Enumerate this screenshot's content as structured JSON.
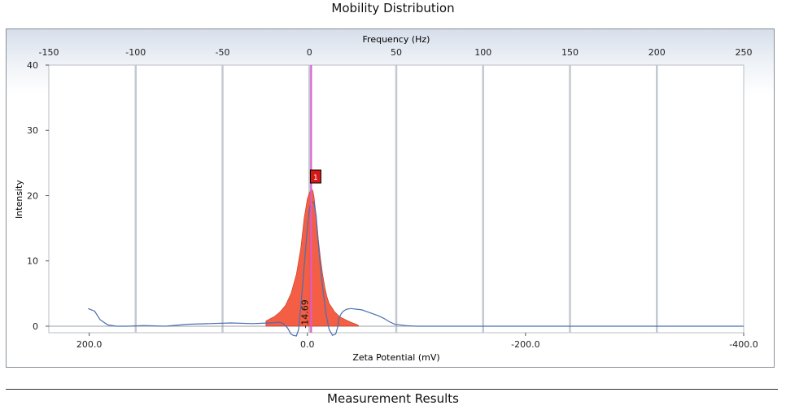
{
  "page": {
    "title": "Mobility Distribution",
    "section_title": "Measurement Results"
  },
  "colors": {
    "curve": "#4a70b0",
    "peak_fill": "#f2553b",
    "marker_line": "#e05ad0",
    "grid": "#c4c8d0",
    "badge": "#d81818"
  },
  "chart_data": {
    "type": "area",
    "top_axis": {
      "label": "Frequency (Hz)",
      "range": [
        -150,
        250
      ],
      "ticks": [
        -150,
        -100,
        -50,
        0,
        50,
        100,
        150,
        200,
        250
      ],
      "tick_labels": [
        "-150",
        "-100",
        "-50",
        "0",
        "50",
        "100",
        "150",
        "200",
        "250"
      ]
    },
    "x_axis": {
      "label": "Zeta Potential (mV)",
      "range": [
        237,
        -400
      ],
      "ticks": [
        200,
        0,
        -200,
        -400
      ],
      "tick_labels": [
        "200.0",
        "0.0",
        "-200.0",
        "-400.0"
      ]
    },
    "y_axis": {
      "label": "Intensity",
      "range": [
        -1,
        40
      ],
      "ticks": [
        0,
        10,
        20,
        30,
        40
      ],
      "tick_labels": [
        "0",
        "10",
        "20",
        "30",
        "40"
      ]
    },
    "grid": "vertical",
    "series": [
      {
        "style": "line",
        "x": [
          201,
          195,
          190,
          183,
          175,
          165,
          150,
          130,
          110,
          90,
          70,
          50,
          35,
          25,
          22,
          18,
          15,
          13,
          10,
          8,
          6,
          4,
          2,
          0,
          -2,
          -4,
          -6,
          -8,
          -10,
          -12,
          -14,
          -17,
          -20,
          -23,
          -26,
          -28,
          -29,
          -31,
          -33,
          -36,
          -40,
          -45,
          -50,
          -55,
          -60,
          -65,
          -70,
          -75,
          -80,
          -90,
          -100,
          -110,
          -130,
          -150,
          -180,
          -220,
          -260,
          -300,
          -340,
          -400
        ],
        "y": [
          2.7,
          2.3,
          1.0,
          0.2,
          0.0,
          0.0,
          0.1,
          0.0,
          0.3,
          0.4,
          0.5,
          0.4,
          0.5,
          0.6,
          0.4,
          -0.3,
          -1.2,
          -1.4,
          -1.5,
          -0.5,
          3.0,
          7.0,
          11.0,
          15.0,
          18.0,
          19.0,
          19.0,
          17.0,
          13.0,
          9.0,
          6.0,
          2.0,
          -0.5,
          -1.4,
          -1.2,
          0.0,
          1.2,
          1.9,
          2.3,
          2.6,
          2.7,
          2.6,
          2.5,
          2.2,
          1.9,
          1.6,
          1.2,
          0.7,
          0.3,
          0.1,
          0.0,
          0.0,
          0.0,
          0.0,
          0.0,
          0.0,
          0.0,
          0.0,
          0.0,
          0.0
        ]
      },
      {
        "style": "area",
        "x": [
          38,
          30,
          25,
          20,
          15,
          10,
          6,
          3,
          0,
          -2,
          -4,
          -5,
          -6,
          -8,
          -10,
          -12,
          -14,
          -16,
          -18,
          -20,
          -25,
          -30,
          -35,
          -40,
          -45,
          -47
        ],
        "y": [
          0.8,
          1.5,
          2.2,
          3.2,
          5.0,
          8.0,
          12.0,
          16.5,
          19.5,
          20.5,
          21.0,
          20.8,
          20.0,
          17.0,
          13.5,
          10.5,
          8.0,
          6.0,
          4.5,
          3.5,
          2.2,
          1.4,
          1.0,
          0.6,
          0.3,
          0.1
        ]
      }
    ],
    "marker": {
      "x": -3.5,
      "label": "-14.69",
      "badge": "1"
    }
  }
}
